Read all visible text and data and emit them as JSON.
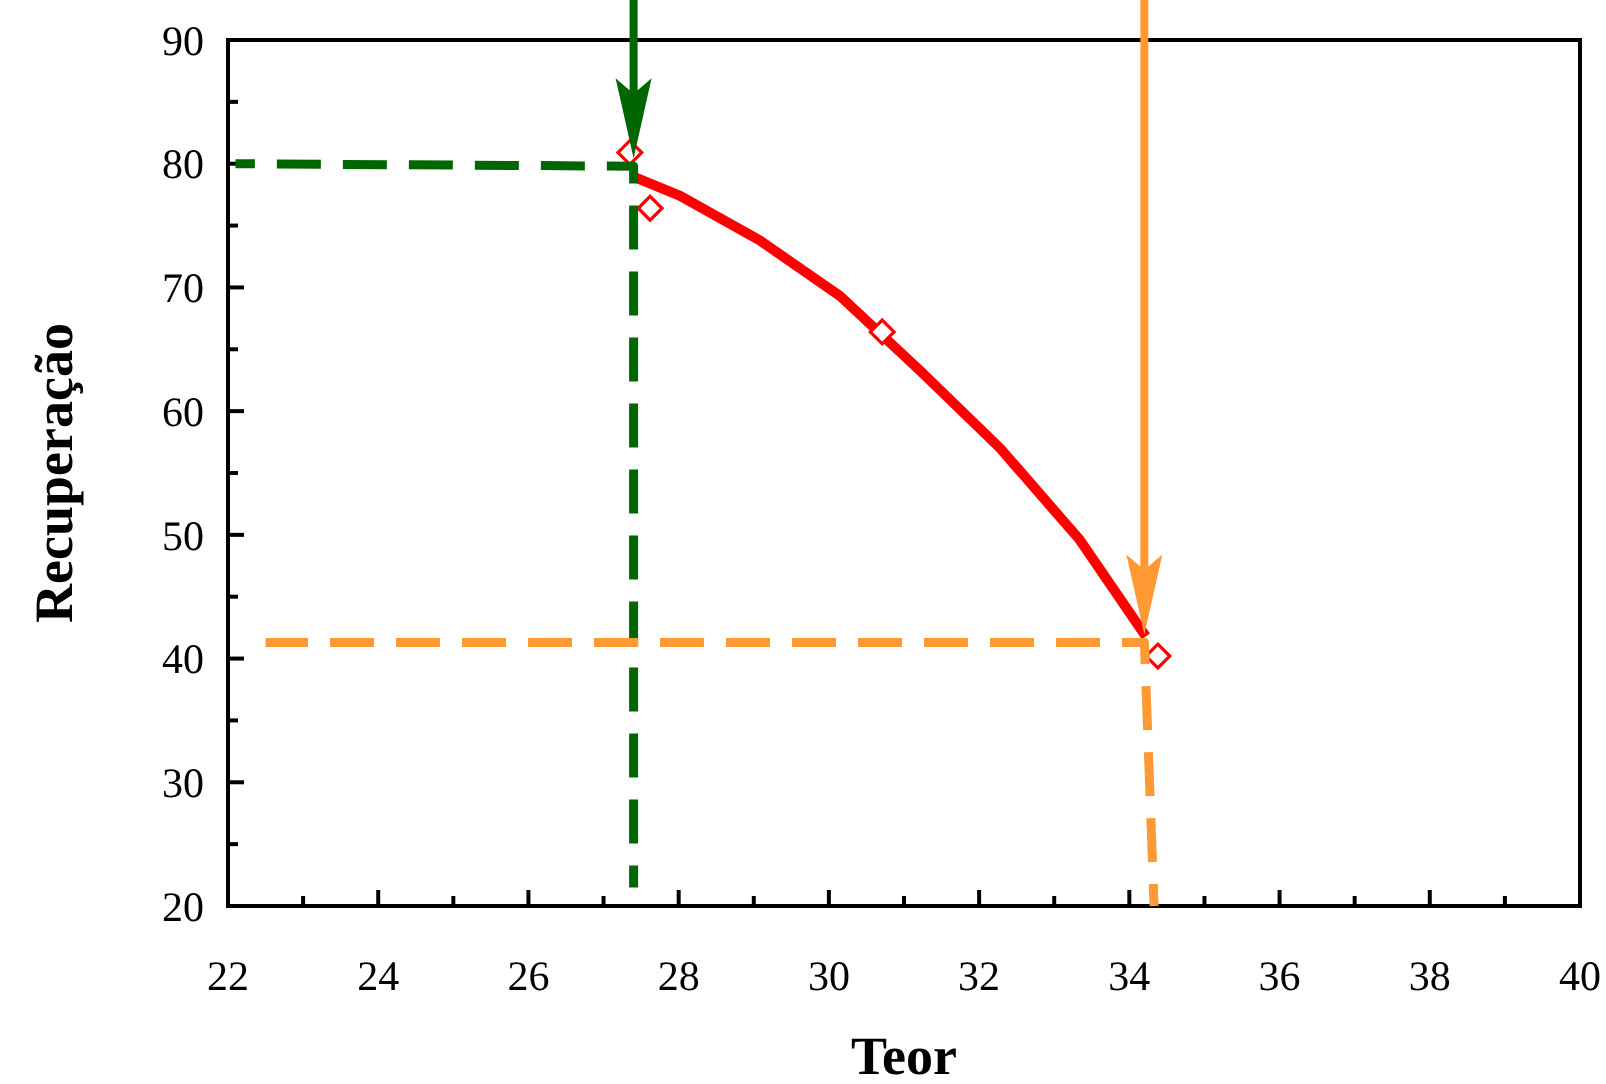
{
  "chart_data": {
    "type": "line",
    "xlabel": "Teor",
    "ylabel": "Recuperação",
    "xlim": [
      22,
      40
    ],
    "ylim": [
      20,
      90
    ],
    "xticks": [
      22,
      {
        "value": 23,
        "label": null
      },
      24,
      {
        "value": 25,
        "label": null
      },
      26,
      {
        "value": 27,
        "label": null
      },
      28,
      {
        "value": 29,
        "label": null
      },
      30,
      {
        "value": 31,
        "label": null
      },
      32,
      {
        "value": 33,
        "label": null
      },
      34,
      {
        "value": 35,
        "label": null
      },
      36,
      {
        "value": 37,
        "label": null
      },
      38,
      {
        "value": 39,
        "label": null
      },
      40
    ],
    "yticks": [
      20,
      {
        "value": 25,
        "label": null
      },
      30,
      {
        "value": 35,
        "label": null
      },
      40,
      {
        "value": 45,
        "label": null
      },
      50,
      {
        "value": 55,
        "label": null
      },
      60,
      {
        "value": 65,
        "label": null
      },
      70,
      {
        "value": 75,
        "label": null
      },
      80,
      {
        "value": 85,
        "label": null
      },
      90
    ],
    "grid": false,
    "series": [
      {
        "color": "#ff0000",
        "line_style": "solid",
        "marker": "none",
        "x": [
          27.38,
          28.02,
          29.08,
          30.15,
          31.21,
          32.28,
          33.34,
          34.22
        ],
        "values": [
          79.0,
          77.4,
          73.8,
          69.3,
          63.3,
          57.0,
          49.6,
          41.8
        ]
      },
      {
        "type": "scatter",
        "color": "#ff0000",
        "marker": "diamond",
        "x": [
          27.35,
          27.62,
          30.71,
          34.38
        ],
        "values": [
          80.9,
          76.4,
          66.4,
          40.2
        ]
      },
      {
        "type": "line",
        "color": "#006600",
        "line_style": "dashed",
        "marker": "none",
        "x": [
          22.1,
          27.4,
          27.4
        ],
        "values": [
          80,
          79.8,
          21.5
        ]
      },
      {
        "type": "line",
        "color": "#ff9933",
        "line_style": "dashed",
        "marker": "none",
        "x": [
          22.5,
          34.2,
          34.33
        ],
        "values": [
          41.3,
          41.3,
          20
        ]
      }
    ]
  }
}
